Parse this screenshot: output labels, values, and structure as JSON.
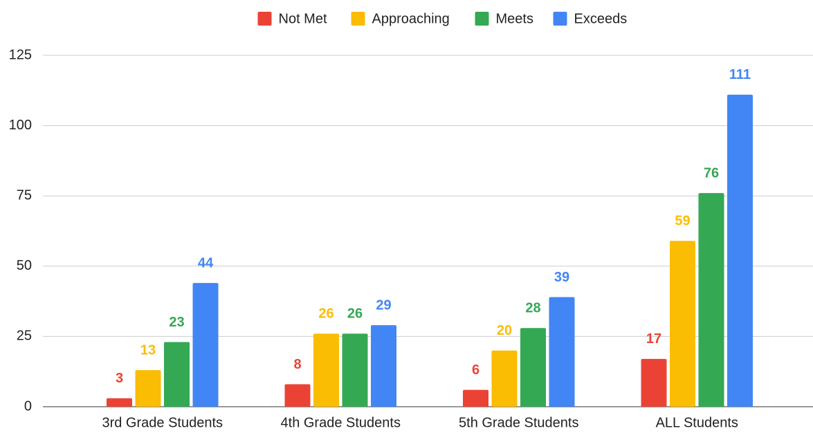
{
  "chart_data": {
    "type": "bar",
    "categories": [
      "3rd Grade Students",
      "4th Grade Students",
      "5th Grade Students",
      "ALL Students"
    ],
    "series": [
      {
        "name": "Not Met",
        "color": "#ea4335",
        "values": [
          3,
          8,
          6,
          17
        ]
      },
      {
        "name": "Approaching",
        "color": "#fbbc04",
        "values": [
          13,
          26,
          20,
          59
        ]
      },
      {
        "name": "Meets",
        "color": "#34a853",
        "values": [
          23,
          26,
          28,
          76
        ]
      },
      {
        "name": "Exceeds",
        "color": "#4285f4",
        "values": [
          44,
          29,
          39,
          111
        ]
      }
    ],
    "ylim": [
      0,
      125
    ],
    "yticks": [
      0,
      25,
      50,
      75,
      100,
      125
    ],
    "grid": true,
    "legend": "top",
    "data_labels": true
  }
}
